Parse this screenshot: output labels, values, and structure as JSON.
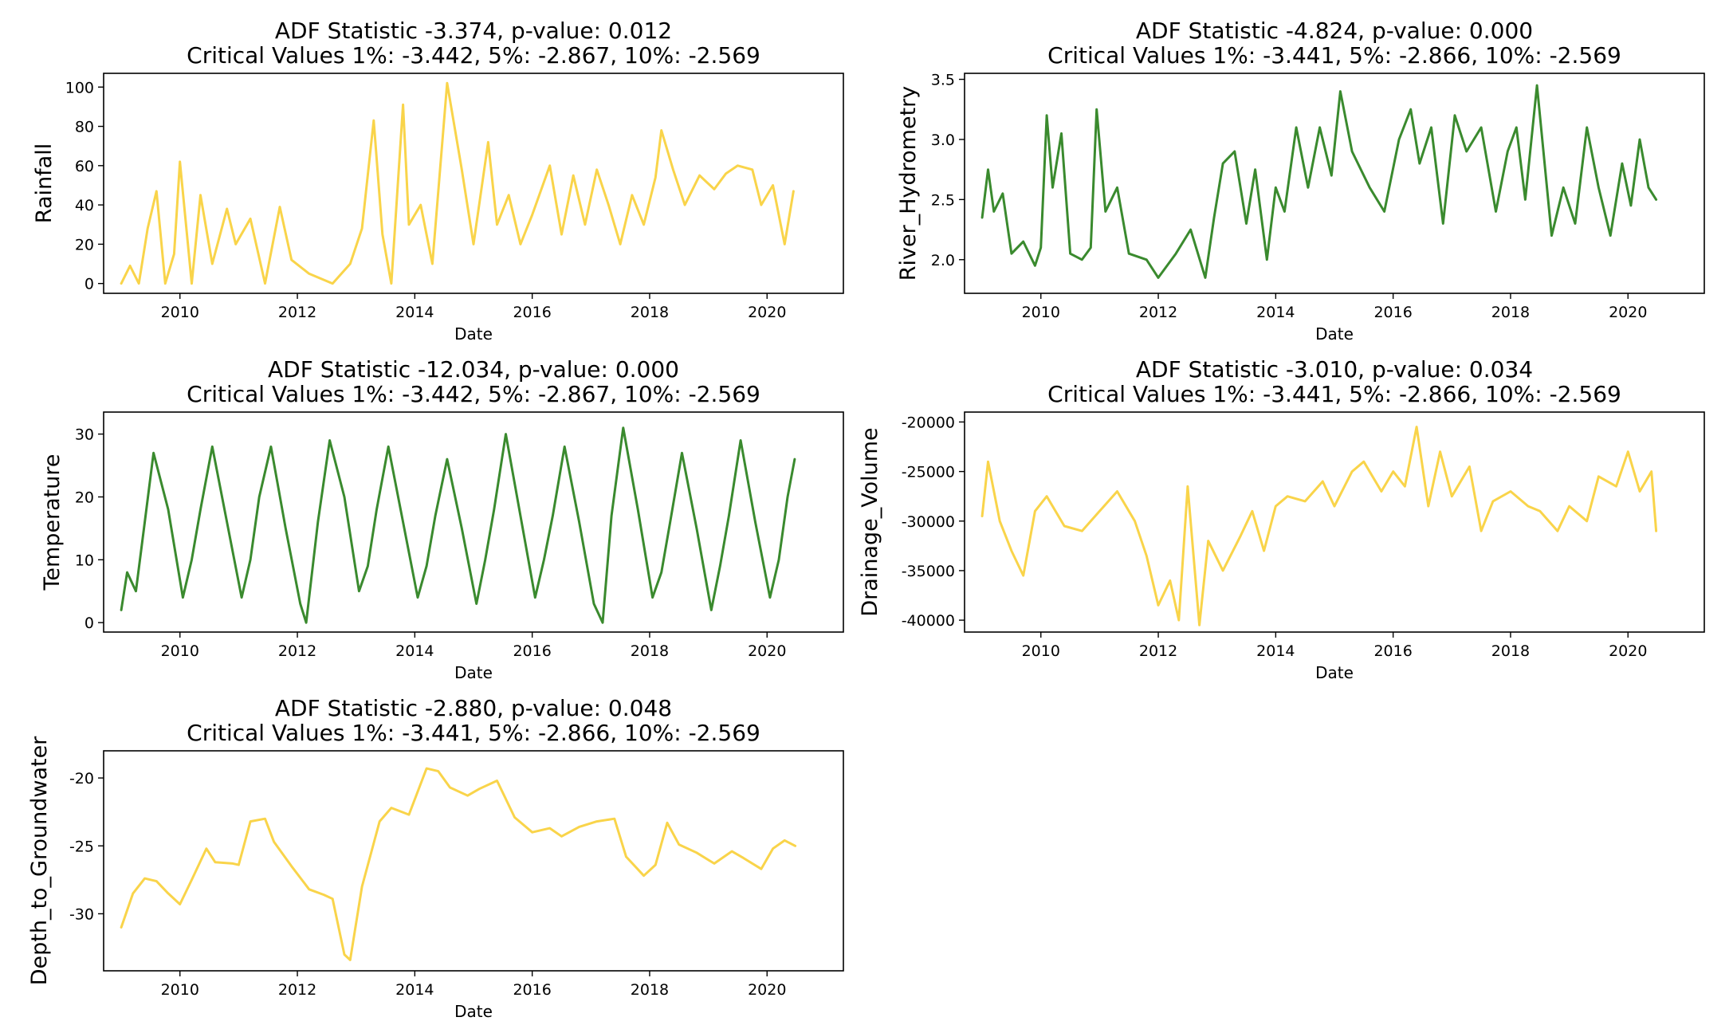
{
  "figure": {
    "colors": {
      "yellow": "#f9d44a",
      "green": "#3a8a2e"
    }
  },
  "chart_data": [
    {
      "id": "rainfall",
      "type": "line",
      "title": "ADF Statistic -3.374, p-value: 0.012",
      "subtitle": "Critical Values 1%: -3.442, 5%: -2.867, 10%: -2.569",
      "xlabel": "Date",
      "ylabel": "Rainfall",
      "color": "#f9d44a",
      "xlim": [
        2008.7,
        2021.3
      ],
      "ylim": [
        -5,
        107
      ],
      "xticks": [
        2010,
        2012,
        2014,
        2016,
        2018,
        2020
      ],
      "yticks": [
        0,
        20,
        40,
        60,
        80,
        100
      ],
      "x": [
        2009.0,
        2009.15,
        2009.3,
        2009.45,
        2009.6,
        2009.75,
        2009.9,
        2010.0,
        2010.2,
        2010.35,
        2010.55,
        2010.8,
        2010.95,
        2011.2,
        2011.45,
        2011.7,
        2011.9,
        2012.2,
        2012.6,
        2012.9,
        2013.1,
        2013.3,
        2013.45,
        2013.6,
        2013.8,
        2013.9,
        2014.1,
        2014.3,
        2014.55,
        2014.8,
        2015.0,
        2015.25,
        2015.4,
        2015.6,
        2015.8,
        2016.0,
        2016.3,
        2016.5,
        2016.7,
        2016.9,
        2017.1,
        2017.3,
        2017.5,
        2017.7,
        2017.9,
        2018.1,
        2018.2,
        2018.4,
        2018.6,
        2018.85,
        2019.1,
        2019.3,
        2019.5,
        2019.75,
        2019.9,
        2020.1,
        2020.3,
        2020.45
      ],
      "values": [
        0,
        9,
        0,
        28,
        47,
        0,
        15,
        62,
        0,
        45,
        10,
        38,
        20,
        33,
        0,
        39,
        12,
        5,
        0,
        10,
        28,
        83,
        25,
        0,
        91,
        30,
        40,
        10,
        102,
        58,
        20,
        72,
        30,
        45,
        20,
        35,
        60,
        25,
        55,
        30,
        58,
        40,
        20,
        45,
        30,
        54,
        78,
        58,
        40,
        55,
        48,
        56,
        60,
        58,
        40,
        50,
        20,
        47
      ]
    },
    {
      "id": "river",
      "type": "line",
      "title": "ADF Statistic -4.824, p-value: 0.000",
      "subtitle": "Critical Values 1%: -3.441, 5%: -2.866, 10%: -2.569",
      "xlabel": "Date",
      "ylabel": "River_Hydrometry",
      "color": "#3a8a2e",
      "xlim": [
        2008.7,
        2021.3
      ],
      "ylim": [
        1.72,
        3.55
      ],
      "xticks": [
        2010,
        2012,
        2014,
        2016,
        2018,
        2020
      ],
      "yticks": [
        2.0,
        2.5,
        3.0,
        3.5
      ],
      "ytick_labels": [
        "2.0",
        "2.5",
        "3.0",
        "3.5"
      ],
      "x": [
        2009.0,
        2009.1,
        2009.2,
        2009.35,
        2009.5,
        2009.7,
        2009.9,
        2010.0,
        2010.1,
        2010.2,
        2010.35,
        2010.5,
        2010.7,
        2010.85,
        2010.95,
        2011.1,
        2011.3,
        2011.5,
        2011.8,
        2012.0,
        2012.3,
        2012.55,
        2012.8,
        2012.95,
        2013.1,
        2013.3,
        2013.5,
        2013.65,
        2013.85,
        2014.0,
        2014.15,
        2014.35,
        2014.55,
        2014.75,
        2014.95,
        2015.1,
        2015.3,
        2015.6,
        2015.85,
        2016.1,
        2016.3,
        2016.45,
        2016.65,
        2016.85,
        2017.05,
        2017.25,
        2017.5,
        2017.75,
        2017.95,
        2018.1,
        2018.25,
        2018.45,
        2018.7,
        2018.9,
        2019.1,
        2019.3,
        2019.5,
        2019.7,
        2019.9,
        2020.05,
        2020.2,
        2020.35,
        2020.48
      ],
      "values": [
        2.35,
        2.75,
        2.4,
        2.55,
        2.05,
        2.15,
        1.95,
        2.1,
        3.2,
        2.6,
        3.05,
        2.05,
        2.0,
        2.1,
        3.25,
        2.4,
        2.6,
        2.05,
        2.0,
        1.85,
        2.05,
        2.25,
        1.85,
        2.35,
        2.8,
        2.9,
        2.3,
        2.75,
        2.0,
        2.6,
        2.4,
        3.1,
        2.6,
        3.1,
        2.7,
        3.4,
        2.9,
        2.6,
        2.4,
        3.0,
        3.25,
        2.8,
        3.1,
        2.3,
        3.2,
        2.9,
        3.1,
        2.4,
        2.9,
        3.1,
        2.5,
        3.45,
        2.2,
        2.6,
        2.3,
        3.1,
        2.6,
        2.2,
        2.8,
        2.45,
        3.0,
        2.6,
        2.5
      ]
    },
    {
      "id": "temperature",
      "type": "line",
      "title": "ADF Statistic -12.034, p-value: 0.000",
      "subtitle": "Critical Values 1%: -3.442, 5%: -2.867, 10%: -2.569",
      "xlabel": "Date",
      "ylabel": "Temperature",
      "color": "#3a8a2e",
      "xlim": [
        2008.7,
        2021.3
      ],
      "ylim": [
        -1.5,
        33.5
      ],
      "xticks": [
        2010,
        2012,
        2014,
        2016,
        2018,
        2020
      ],
      "yticks": [
        0,
        10,
        20,
        30
      ],
      "x": [
        2009.0,
        2009.1,
        2009.25,
        2009.4,
        2009.55,
        2009.8,
        2010.05,
        2010.2,
        2010.35,
        2010.55,
        2010.8,
        2011.05,
        2011.2,
        2011.35,
        2011.55,
        2011.8,
        2012.05,
        2012.15,
        2012.35,
        2012.55,
        2012.8,
        2013.05,
        2013.2,
        2013.35,
        2013.55,
        2013.8,
        2014.05,
        2014.2,
        2014.35,
        2014.55,
        2014.8,
        2015.05,
        2015.2,
        2015.35,
        2015.55,
        2015.8,
        2016.05,
        2016.2,
        2016.35,
        2016.55,
        2016.8,
        2017.05,
        2017.2,
        2017.35,
        2017.55,
        2017.8,
        2018.05,
        2018.2,
        2018.35,
        2018.55,
        2018.8,
        2019.05,
        2019.2,
        2019.35,
        2019.55,
        2019.8,
        2020.05,
        2020.2,
        2020.35,
        2020.47
      ],
      "values": [
        2,
        8,
        5,
        16,
        27,
        18,
        4,
        10,
        18,
        28,
        16,
        4,
        10,
        20,
        28,
        15,
        3,
        0,
        16,
        29,
        20,
        5,
        9,
        18,
        28,
        16,
        4,
        9,
        17,
        26,
        15,
        3,
        10,
        18,
        30,
        17,
        4,
        10,
        17,
        28,
        16,
        3,
        0,
        17,
        31,
        18,
        4,
        8,
        16,
        27,
        15,
        2,
        9,
        17,
        29,
        16,
        4,
        10,
        20,
        26
      ]
    },
    {
      "id": "drainage",
      "type": "line",
      "title": "ADF Statistic -3.010, p-value: 0.034",
      "subtitle": "Critical Values 1%: -3.441, 5%: -2.866, 10%: -2.569",
      "xlabel": "Date",
      "ylabel": "Drainage_Volume",
      "color": "#f9d44a",
      "xlim": [
        2008.7,
        2021.3
      ],
      "ylim": [
        -41200,
        -19000
      ],
      "xticks": [
        2010,
        2012,
        2014,
        2016,
        2018,
        2020
      ],
      "yticks": [
        -40000,
        -35000,
        -30000,
        -25000,
        -20000
      ],
      "x": [
        2009.0,
        2009.1,
        2009.3,
        2009.5,
        2009.7,
        2009.9,
        2010.1,
        2010.4,
        2010.7,
        2011.0,
        2011.3,
        2011.6,
        2011.8,
        2012.0,
        2012.2,
        2012.35,
        2012.5,
        2012.7,
        2012.85,
        2013.1,
        2013.4,
        2013.6,
        2013.8,
        2014.0,
        2014.2,
        2014.5,
        2014.8,
        2015.0,
        2015.3,
        2015.5,
        2015.8,
        2016.0,
        2016.2,
        2016.4,
        2016.6,
        2016.8,
        2017.0,
        2017.3,
        2017.5,
        2017.7,
        2018.0,
        2018.3,
        2018.5,
        2018.8,
        2019.0,
        2019.3,
        2019.5,
        2019.8,
        2020.0,
        2020.2,
        2020.4,
        2020.48
      ],
      "values": [
        -29500,
        -24000,
        -30000,
        -33000,
        -35500,
        -29000,
        -27500,
        -30500,
        -31000,
        -29000,
        -27000,
        -30000,
        -33500,
        -38500,
        -36000,
        -40000,
        -26500,
        -40500,
        -32000,
        -35000,
        -31500,
        -29000,
        -33000,
        -28500,
        -27500,
        -28000,
        -26000,
        -28500,
        -25000,
        -24000,
        -27000,
        -25000,
        -26500,
        -20500,
        -28500,
        -23000,
        -27500,
        -24500,
        -31000,
        -28000,
        -27000,
        -28500,
        -29000,
        -31000,
        -28500,
        -30000,
        -25500,
        -26500,
        -23000,
        -27000,
        -25000,
        -31000
      ]
    },
    {
      "id": "depth",
      "type": "line",
      "title": "ADF Statistic -2.880, p-value: 0.048",
      "subtitle": "Critical Values 1%: -3.441, 5%: -2.866, 10%: -2.569",
      "xlabel": "Date",
      "ylabel": "Depth_to_Groundwater",
      "color": "#f9d44a",
      "xlim": [
        2008.7,
        2021.3
      ],
      "ylim": [
        -34.2,
        -18.0
      ],
      "xticks": [
        2010,
        2012,
        2014,
        2016,
        2018,
        2020
      ],
      "yticks": [
        -30,
        -25,
        -20
      ],
      "x": [
        2009.0,
        2009.2,
        2009.4,
        2009.6,
        2009.8,
        2010.0,
        2010.2,
        2010.45,
        2010.6,
        2010.9,
        2011.0,
        2011.2,
        2011.45,
        2011.6,
        2011.9,
        2012.2,
        2012.45,
        2012.6,
        2012.8,
        2012.9,
        2013.1,
        2013.4,
        2013.6,
        2013.9,
        2014.2,
        2014.4,
        2014.6,
        2014.9,
        2015.1,
        2015.4,
        2015.7,
        2016.0,
        2016.3,
        2016.5,
        2016.8,
        2017.1,
        2017.4,
        2017.6,
        2017.9,
        2018.1,
        2018.3,
        2018.5,
        2018.8,
        2019.1,
        2019.4,
        2019.6,
        2019.9,
        2020.1,
        2020.3,
        2020.48
      ],
      "values": [
        -31,
        -28.5,
        -27.4,
        -27.6,
        -28.5,
        -29.3,
        -27.5,
        -25.2,
        -26.2,
        -26.3,
        -26.4,
        -23.2,
        -23.0,
        -24.7,
        -26.5,
        -28.2,
        -28.6,
        -28.9,
        -33.0,
        -33.4,
        -28.0,
        -23.2,
        -22.2,
        -22.7,
        -19.3,
        -19.5,
        -20.7,
        -21.3,
        -20.8,
        -20.2,
        -22.9,
        -24.0,
        -23.7,
        -24.3,
        -23.6,
        -23.2,
        -23.0,
        -25.8,
        -27.2,
        -26.4,
        -23.3,
        -24.9,
        -25.5,
        -26.3,
        -25.4,
        -25.9,
        -26.7,
        -25.2,
        -24.6,
        -25.0
      ]
    }
  ]
}
